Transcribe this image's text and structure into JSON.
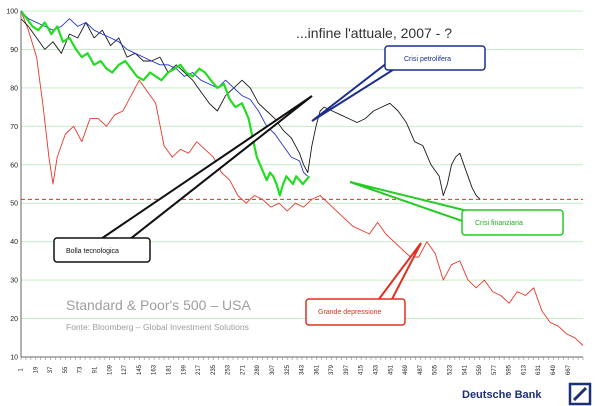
{
  "chart_data": {
    "type": "line",
    "title": "...infine l'attuale, 2007 - ?",
    "xlabel": "",
    "ylabel": "",
    "ylim": [
      10,
      100
    ],
    "xlim": [
      1,
      685
    ],
    "yticks": [
      10,
      20,
      30,
      40,
      50,
      60,
      70,
      80,
      90,
      100
    ],
    "xticks": [
      1,
      19,
      37,
      55,
      73,
      91,
      109,
      127,
      145,
      163,
      181,
      199,
      217,
      235,
      253,
      271,
      289,
      307,
      325,
      343,
      361,
      379,
      397,
      415,
      433,
      451,
      469,
      487,
      505,
      523,
      541,
      559,
      577,
      595,
      613,
      631,
      649,
      667
    ],
    "grid": "horizontal",
    "reference_line": {
      "y": 51,
      "style": "dashed",
      "color": "#e03020"
    },
    "series": [
      {
        "color": "#e8372a",
        "points": [
          [
            1,
            100
          ],
          [
            10,
            95
          ],
          [
            20,
            88
          ],
          [
            28,
            75
          ],
          [
            35,
            62
          ],
          [
            40,
            55
          ],
          [
            45,
            62
          ],
          [
            55,
            68
          ],
          [
            65,
            70
          ],
          [
            75,
            66
          ],
          [
            85,
            72
          ],
          [
            95,
            72
          ],
          [
            105,
            70
          ],
          [
            115,
            73
          ],
          [
            125,
            74
          ],
          [
            135,
            78
          ],
          [
            145,
            82
          ],
          [
            155,
            79
          ],
          [
            165,
            76
          ],
          [
            175,
            65
          ],
          [
            185,
            62
          ],
          [
            195,
            64
          ],
          [
            205,
            63
          ],
          [
            215,
            66
          ],
          [
            225,
            64
          ],
          [
            235,
            62
          ],
          [
            245,
            58
          ],
          [
            255,
            56
          ],
          [
            265,
            52
          ],
          [
            275,
            50
          ],
          [
            285,
            52
          ],
          [
            295,
            51
          ],
          [
            305,
            49
          ],
          [
            315,
            50
          ],
          [
            325,
            48
          ],
          [
            335,
            50
          ],
          [
            345,
            49
          ],
          [
            355,
            51
          ],
          [
            365,
            52
          ],
          [
            375,
            50
          ],
          [
            385,
            48
          ],
          [
            395,
            46
          ],
          [
            405,
            44
          ],
          [
            415,
            43
          ],
          [
            425,
            42
          ],
          [
            435,
            45
          ],
          [
            445,
            42
          ],
          [
            455,
            40
          ],
          [
            465,
            38
          ],
          [
            475,
            36
          ],
          [
            485,
            36
          ],
          [
            495,
            40
          ],
          [
            505,
            37
          ],
          [
            515,
            30
          ],
          [
            525,
            34
          ],
          [
            535,
            35
          ],
          [
            545,
            30
          ],
          [
            555,
            28
          ],
          [
            565,
            30
          ],
          [
            575,
            27
          ],
          [
            585,
            26
          ],
          [
            595,
            24
          ],
          [
            605,
            27
          ],
          [
            615,
            26
          ],
          [
            625,
            28
          ],
          [
            635,
            22
          ],
          [
            645,
            19
          ],
          [
            655,
            18
          ],
          [
            665,
            16
          ],
          [
            675,
            15
          ],
          [
            685,
            13
          ]
        ]
      },
      {
        "color": "#1a1a1a",
        "points": [
          [
            1,
            98
          ],
          [
            10,
            96
          ],
          [
            20,
            93
          ],
          [
            30,
            90
          ],
          [
            40,
            92
          ],
          [
            50,
            89
          ],
          [
            60,
            94
          ],
          [
            70,
            93
          ],
          [
            80,
            97
          ],
          [
            90,
            93
          ],
          [
            100,
            95
          ],
          [
            110,
            91
          ],
          [
            120,
            93
          ],
          [
            130,
            88
          ],
          [
            140,
            89
          ],
          [
            150,
            87
          ],
          [
            160,
            87
          ],
          [
            170,
            88
          ],
          [
            180,
            84
          ],
          [
            190,
            86
          ],
          [
            200,
            84
          ],
          [
            210,
            82
          ],
          [
            220,
            79
          ],
          [
            230,
            76
          ],
          [
            240,
            74
          ],
          [
            250,
            78
          ],
          [
            260,
            80
          ],
          [
            270,
            82
          ],
          [
            280,
            80
          ],
          [
            290,
            76
          ],
          [
            300,
            74
          ],
          [
            310,
            72
          ],
          [
            320,
            69
          ],
          [
            330,
            67
          ],
          [
            340,
            63
          ],
          [
            345,
            60
          ],
          [
            350,
            58
          ],
          [
            355,
            65
          ],
          [
            360,
            70
          ],
          [
            365,
            74
          ],
          [
            370,
            75
          ],
          [
            380,
            74
          ],
          [
            390,
            73
          ],
          [
            400,
            72
          ],
          [
            410,
            71
          ],
          [
            420,
            72
          ],
          [
            430,
            74
          ],
          [
            440,
            75
          ],
          [
            450,
            76
          ],
          [
            460,
            74
          ],
          [
            470,
            71
          ],
          [
            480,
            66
          ],
          [
            490,
            65
          ],
          [
            500,
            60
          ],
          [
            510,
            57
          ],
          [
            515,
            52
          ],
          [
            520,
            55
          ],
          [
            525,
            60
          ],
          [
            530,
            62
          ],
          [
            535,
            63
          ],
          [
            540,
            60
          ],
          [
            545,
            57
          ],
          [
            550,
            54
          ],
          [
            555,
            52
          ],
          [
            560,
            51
          ]
        ]
      },
      {
        "color": "#2233cc",
        "points": [
          [
            1,
            100
          ],
          [
            10,
            98
          ],
          [
            20,
            97
          ],
          [
            30,
            96
          ],
          [
            40,
            95
          ],
          [
            50,
            96
          ],
          [
            60,
            98
          ],
          [
            70,
            96
          ],
          [
            80,
            97
          ],
          [
            90,
            95
          ],
          [
            100,
            94
          ],
          [
            110,
            93
          ],
          [
            120,
            92
          ],
          [
            130,
            90
          ],
          [
            140,
            89
          ],
          [
            150,
            88
          ],
          [
            160,
            87
          ],
          [
            170,
            86
          ],
          [
            180,
            86
          ],
          [
            190,
            85
          ],
          [
            200,
            83
          ],
          [
            210,
            84
          ],
          [
            220,
            82
          ],
          [
            230,
            81
          ],
          [
            240,
            80
          ],
          [
            250,
            82
          ],
          [
            260,
            80
          ],
          [
            270,
            78
          ],
          [
            280,
            77
          ],
          [
            290,
            74
          ],
          [
            300,
            70
          ],
          [
            310,
            68
          ],
          [
            320,
            65
          ],
          [
            330,
            62
          ],
          [
            340,
            61
          ],
          [
            345,
            58
          ],
          [
            350,
            57
          ]
        ]
      },
      {
        "color": "#22dd22",
        "points": [
          [
            1,
            100
          ],
          [
            8,
            98
          ],
          [
            15,
            96
          ],
          [
            22,
            95
          ],
          [
            30,
            97
          ],
          [
            38,
            94
          ],
          [
            45,
            96
          ],
          [
            52,
            92
          ],
          [
            60,
            93
          ],
          [
            68,
            90
          ],
          [
            75,
            88
          ],
          [
            82,
            89
          ],
          [
            90,
            86
          ],
          [
            98,
            87
          ],
          [
            105,
            85
          ],
          [
            112,
            84
          ],
          [
            120,
            86
          ],
          [
            128,
            87
          ],
          [
            135,
            85
          ],
          [
            142,
            83
          ],
          [
            150,
            82
          ],
          [
            158,
            84
          ],
          [
            165,
            83
          ],
          [
            172,
            82
          ],
          [
            180,
            84
          ],
          [
            188,
            85
          ],
          [
            195,
            86
          ],
          [
            202,
            84
          ],
          [
            210,
            83
          ],
          [
            218,
            85
          ],
          [
            225,
            84
          ],
          [
            232,
            82
          ],
          [
            240,
            80
          ],
          [
            248,
            81
          ],
          [
            255,
            77
          ],
          [
            262,
            75
          ],
          [
            270,
            76
          ],
          [
            278,
            72
          ],
          [
            285,
            65
          ],
          [
            288,
            62
          ],
          [
            292,
            60
          ],
          [
            296,
            58
          ],
          [
            300,
            56
          ],
          [
            304,
            58
          ],
          [
            308,
            57
          ],
          [
            312,
            55
          ],
          [
            316,
            52
          ],
          [
            320,
            55
          ],
          [
            324,
            57
          ],
          [
            328,
            56
          ],
          [
            332,
            55
          ],
          [
            336,
            57
          ],
          [
            340,
            56
          ],
          [
            344,
            55
          ],
          [
            348,
            56
          ],
          [
            352,
            57
          ]
        ]
      }
    ]
  },
  "annotations": {
    "crisi_petrolifera": "Crisi petrolifera",
    "bolla_tecnologica": "Bolla tecnologica",
    "crisi_finanziaria": "Crisi finanziaria",
    "grande_depressione": "Grande depressione"
  },
  "watermark": {
    "title": "Standard & Poor's 500 – USA",
    "source": "Fonte: Bloomberg – Global Investment Solutions"
  },
  "brand": {
    "name": "Deutsche Bank"
  },
  "colors": {
    "grid": "#c8ecc8",
    "callout_blue": "#1c2f90",
    "callout_green": "#22cc22",
    "callout_red": "#e03020",
    "callout_black": "#111111"
  }
}
